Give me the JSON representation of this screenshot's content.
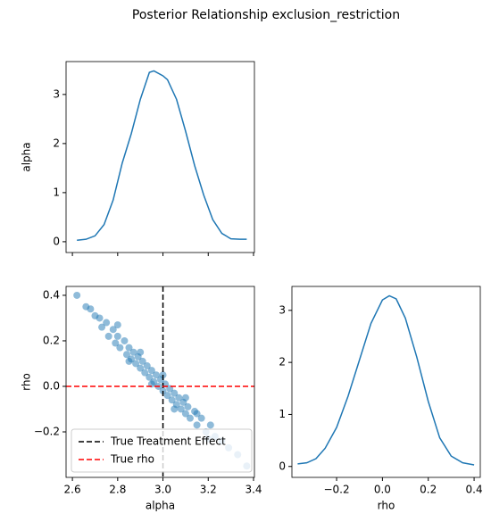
{
  "title": "Posterior Relationship exclusion_restriction",
  "chart_data": [
    {
      "type": "line",
      "ylabel": "alpha",
      "color": "#1f77b4",
      "x": [
        2.62,
        2.66,
        2.7,
        2.74,
        2.78,
        2.82,
        2.86,
        2.9,
        2.94,
        2.96,
        3.0,
        3.02,
        3.06,
        3.1,
        3.14,
        3.18,
        3.22,
        3.26,
        3.3,
        3.34,
        3.37
      ],
      "values": [
        0.03,
        0.05,
        0.12,
        0.35,
        0.85,
        1.6,
        2.2,
        2.9,
        3.45,
        3.48,
        3.38,
        3.3,
        2.9,
        2.25,
        1.55,
        0.95,
        0.45,
        0.17,
        0.06,
        0.05,
        0.05
      ],
      "xlim": [
        2.572,
        3.404
      ],
      "ylim": [
        -0.22,
        3.67
      ],
      "xticks": [
        2.6,
        2.8,
        {
          "value": 3.0,
          "label": "3.0"
        },
        3.2,
        3.4
      ],
      "xtick_labels": false,
      "yticks": [
        0,
        1,
        2,
        3
      ]
    },
    {
      "type": "scatter",
      "xlabel": "alpha",
      "ylabel": "rho",
      "color": "#1f77b4",
      "x": [
        2.62,
        2.66,
        2.68,
        2.7,
        2.72,
        2.73,
        2.75,
        2.76,
        2.78,
        2.79,
        2.8,
        2.81,
        2.83,
        2.84,
        2.85,
        2.86,
        2.87,
        2.88,
        2.89,
        2.9,
        2.91,
        2.92,
        2.93,
        2.94,
        2.95,
        2.96,
        2.97,
        2.98,
        2.99,
        3.0,
        3.01,
        3.02,
        3.03,
        3.04,
        3.05,
        3.06,
        3.07,
        3.08,
        3.09,
        3.1,
        3.11,
        3.12,
        3.14,
        3.15,
        3.17,
        3.19,
        3.21,
        3.23,
        3.26,
        3.29,
        3.33,
        3.37,
        2.8,
        2.85,
        2.9,
        2.95,
        3.0,
        3.05,
        3.1,
        3.15,
        3.2
      ],
      "values": [
        0.4,
        0.35,
        0.34,
        0.31,
        0.3,
        0.26,
        0.28,
        0.22,
        0.25,
        0.19,
        0.22,
        0.17,
        0.2,
        0.14,
        0.17,
        0.12,
        0.15,
        0.1,
        0.13,
        0.08,
        0.11,
        0.06,
        0.09,
        0.04,
        0.07,
        0.02,
        0.05,
        0.0,
        0.03,
        -0.02,
        0.01,
        -0.04,
        -0.01,
        -0.06,
        -0.03,
        -0.08,
        -0.05,
        -0.1,
        -0.07,
        -0.12,
        -0.09,
        -0.14,
        -0.11,
        -0.17,
        -0.14,
        -0.2,
        -0.17,
        -0.22,
        -0.24,
        -0.27,
        -0.3,
        -0.35,
        0.27,
        0.11,
        0.15,
        0.01,
        0.05,
        -0.1,
        -0.05,
        -0.12,
        -0.23
      ],
      "xlim": [
        2.572,
        3.404
      ],
      "ylim": [
        -0.4,
        0.439
      ],
      "xticks": [
        2.6,
        2.8,
        {
          "value": 3.0,
          "label": "3.0"
        },
        3.2,
        3.4
      ],
      "yticks": [
        {
          "value": -0.2,
          "label": "−0.2"
        },
        {
          "value": 0.0,
          "label": "0.0"
        },
        0.2,
        0.4
      ],
      "reference_lines": [
        {
          "name": "True Treatment Effect",
          "axis": "x",
          "value": 3.0,
          "color": "#000000"
        },
        {
          "name": "True rho",
          "axis": "y",
          "value": 0.0,
          "color": "#ff0000"
        }
      ],
      "legend": "lower left"
    },
    {
      "type": "line",
      "xlabel": "rho",
      "color": "#1f77b4",
      "x": [
        -0.37,
        -0.33,
        -0.29,
        -0.25,
        -0.2,
        -0.15,
        -0.1,
        -0.05,
        0.0,
        0.03,
        0.06,
        0.1,
        0.15,
        0.2,
        0.25,
        0.3,
        0.35,
        0.4
      ],
      "values": [
        0.05,
        0.07,
        0.15,
        0.35,
        0.75,
        1.35,
        2.05,
        2.75,
        3.2,
        3.28,
        3.22,
        2.85,
        2.1,
        1.25,
        0.55,
        0.2,
        0.07,
        0.03
      ],
      "xlim": [
        -0.395,
        0.427
      ],
      "ylim": [
        -0.21,
        3.46
      ],
      "xticks": [
        {
          "value": -0.2,
          "label": "−0.2"
        },
        {
          "value": 0.0,
          "label": "0.0"
        },
        0.2,
        0.4
      ],
      "yticks": [
        0,
        1,
        2,
        3
      ]
    }
  ]
}
